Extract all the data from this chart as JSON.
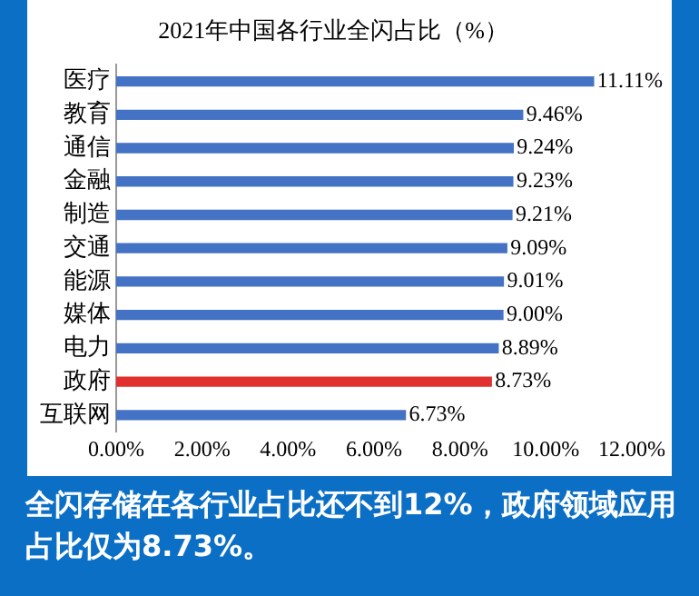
{
  "chart_data": {
    "type": "bar",
    "orientation": "horizontal",
    "title": "2021年中国各行业全闪占比（%）",
    "categories": [
      "医疗",
      "教育",
      "通信",
      "金融",
      "制造",
      "交通",
      "能源",
      "媒体",
      "电力",
      "政府",
      "互联网"
    ],
    "values": [
      11.11,
      9.46,
      9.24,
      9.23,
      9.21,
      9.09,
      9.01,
      9.0,
      8.89,
      8.73,
      6.73
    ],
    "colors": [
      "#4472c4",
      "#4472c4",
      "#4472c4",
      "#4472c4",
      "#4472c4",
      "#4472c4",
      "#4472c4",
      "#4472c4",
      "#4472c4",
      "#e0312f",
      "#4472c4"
    ],
    "value_labels": [
      "11.11%",
      "9.46%",
      "9.24%",
      "9.23%",
      "9.21%",
      "9.09%",
      "9.01%",
      "9.00%",
      "8.89%",
      "8.73%",
      "6.73%"
    ],
    "xlim": [
      0,
      12
    ],
    "xticks": [
      {
        "value": 0,
        "label": "0.00%"
      },
      {
        "value": 2,
        "label": "2.00%"
      },
      {
        "value": 4,
        "label": "4.00%"
      },
      {
        "value": 6,
        "label": "6.00%"
      },
      {
        "value": 8,
        "label": "8.00%"
      },
      {
        "value": 10,
        "label": "10.00%"
      },
      {
        "value": 12,
        "label": "12.00%"
      }
    ],
    "grid": false,
    "legend": false,
    "annotations": [
      "全闪存储在各行业占比还不到12%，政府领域应用占比仅为8.73%。"
    ]
  }
}
